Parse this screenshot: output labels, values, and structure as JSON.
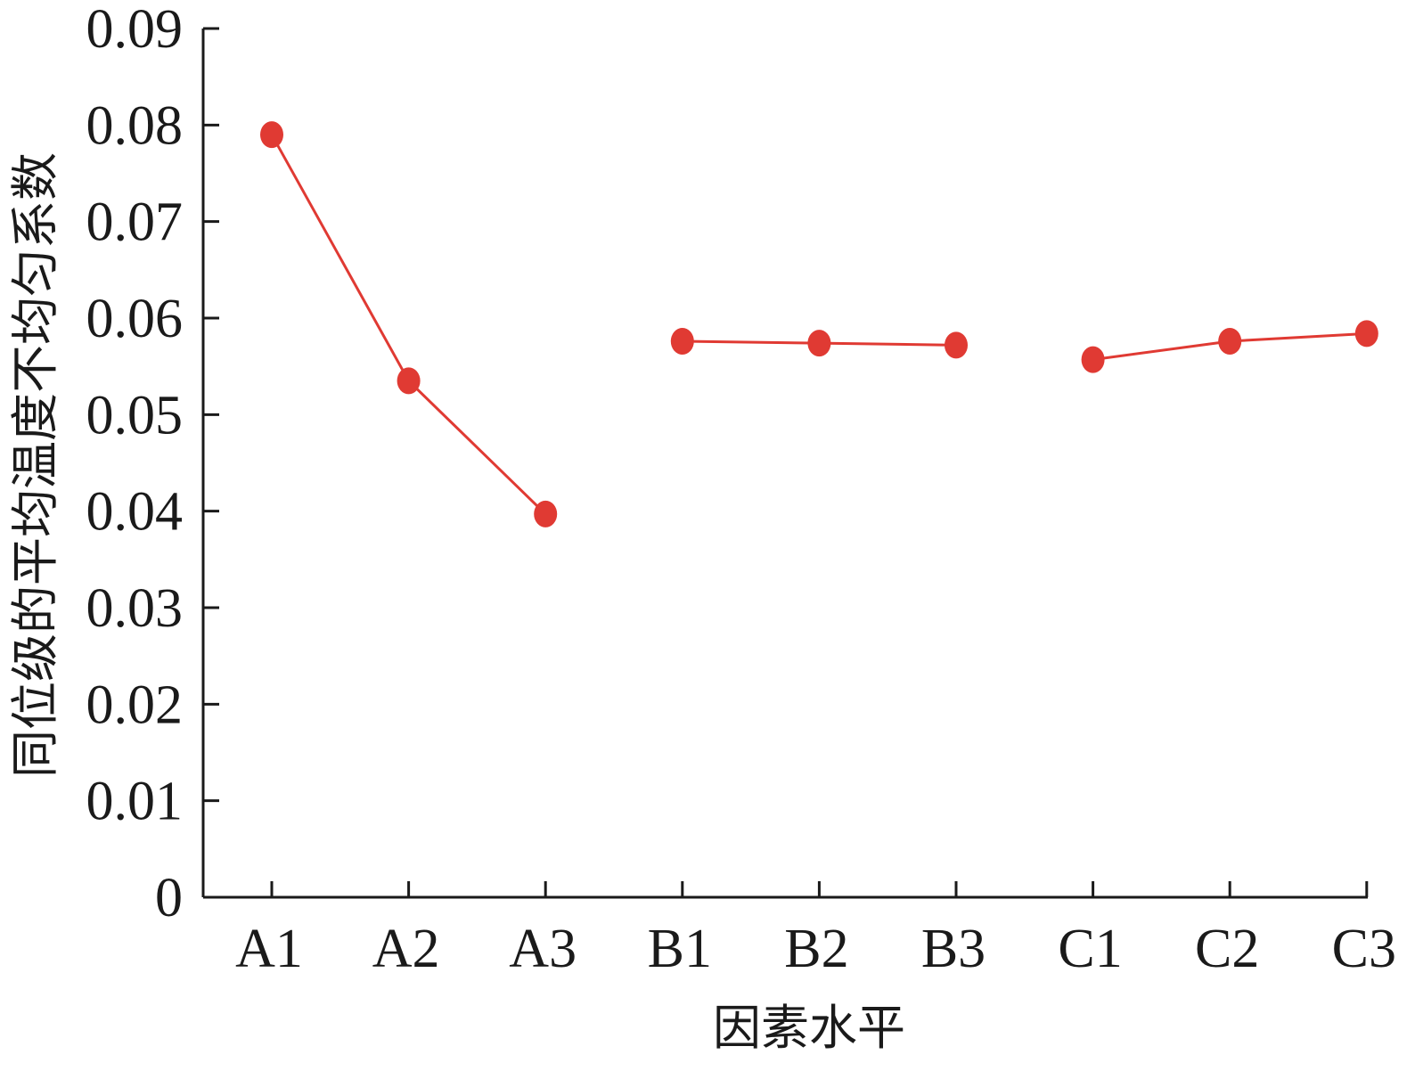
{
  "chart_data": {
    "type": "line",
    "xlabel": "因素水平",
    "ylabel": "同位级的平均温度不均匀系数",
    "categories": [
      "A1",
      "A2",
      "A3",
      "B1",
      "B2",
      "B3",
      "C1",
      "C2",
      "C3"
    ],
    "y_ticks": [
      "0",
      "0.01",
      "0.02",
      "0.03",
      "0.04",
      "0.05",
      "0.06",
      "0.07",
      "0.08",
      "0.09"
    ],
    "ylim": [
      0,
      0.09
    ],
    "grid": false,
    "legend": "none",
    "color": "#e03a33",
    "groups": [
      {
        "categories": [
          "A1",
          "A2",
          "A3"
        ],
        "values": [
          0.079,
          0.0535,
          0.0397
        ]
      },
      {
        "categories": [
          "B1",
          "B2",
          "B3"
        ],
        "values": [
          0.0576,
          0.0574,
          0.0572
        ]
      },
      {
        "categories": [
          "C1",
          "C2",
          "C3"
        ],
        "values": [
          0.0557,
          0.0576,
          0.0584
        ]
      }
    ]
  }
}
